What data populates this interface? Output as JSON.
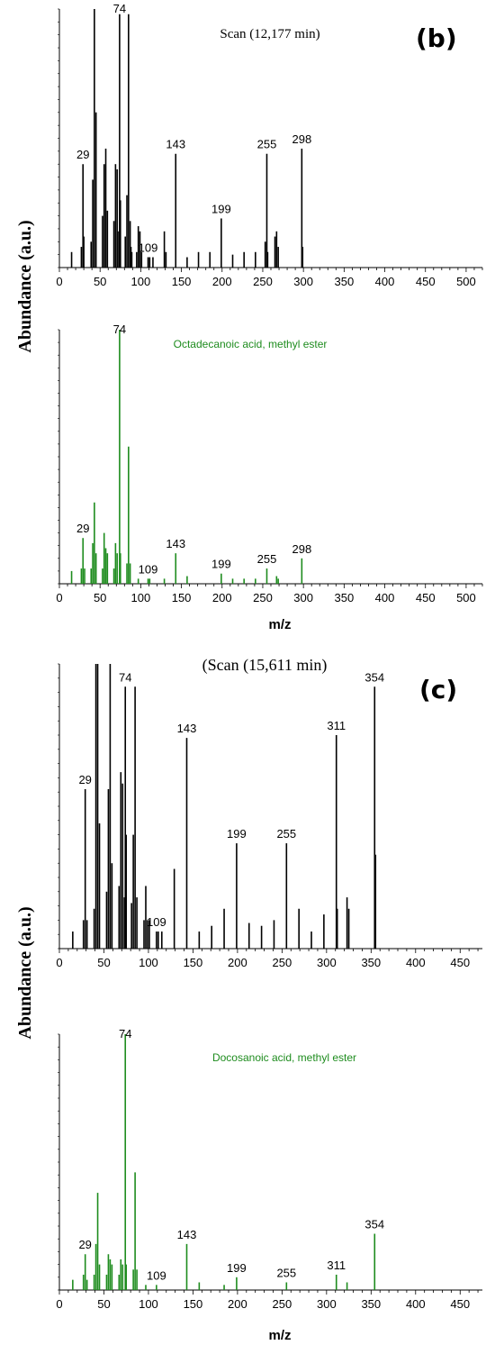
{
  "colors": {
    "measured": "#000000",
    "library": "#1e8c1e"
  },
  "axis_labels": {
    "abundance_top": "Abundance (a.u.)",
    "mz_top": "m/z",
    "abundance_bottom": "Abundance (a.u.)",
    "mz_bottom": "m/z"
  },
  "chart_data": [
    {
      "type": "bar",
      "panel": "b",
      "title": "Scan (12,177 min)",
      "color": "#000000",
      "xlim": [
        0,
        520
      ],
      "xticks": [
        "0",
        "50",
        "100",
        "150",
        "200",
        "250",
        "300",
        "350",
        "400",
        "450",
        "500"
      ],
      "x": [
        15,
        27,
        29,
        30,
        39,
        41,
        43,
        45,
        53,
        55,
        57,
        59,
        67,
        69,
        71,
        73,
        74,
        75,
        81,
        83,
        85,
        87,
        88,
        89,
        95,
        97,
        99,
        101,
        109,
        111,
        115,
        129,
        131,
        143,
        157,
        171,
        185,
        199,
        213,
        227,
        241,
        253,
        255,
        256,
        265,
        267,
        269,
        298,
        299
      ],
      "values": [
        6,
        8,
        40,
        12,
        10,
        34,
        100,
        60,
        20,
        40,
        46,
        22,
        18,
        40,
        38,
        14,
        98,
        26,
        12,
        28,
        98,
        18,
        8,
        6,
        6,
        16,
        14,
        6,
        4,
        4,
        4,
        14,
        6,
        44,
        4,
        6,
        6,
        19,
        5,
        6,
        6,
        10,
        44,
        6,
        12,
        14,
        8,
        46,
        8
      ],
      "labels": [
        {
          "x": 29,
          "text": "29"
        },
        {
          "x": 74,
          "text": "74"
        },
        {
          "x": 109,
          "text": "109"
        },
        {
          "x": 143,
          "text": "143"
        },
        {
          "x": 199,
          "text": "199"
        },
        {
          "x": 255,
          "text": "255"
        },
        {
          "x": 298,
          "text": "298"
        }
      ]
    },
    {
      "type": "bar",
      "compound": "Octadecanoic acid, methyl ester",
      "color": "#1e8c1e",
      "xlim": [
        0,
        520
      ],
      "xticks": [
        "0",
        "50",
        "100",
        "150",
        "200",
        "250",
        "300",
        "350",
        "400",
        "450",
        "500"
      ],
      "x": [
        15,
        27,
        29,
        31,
        39,
        41,
        43,
        45,
        53,
        55,
        57,
        59,
        67,
        69,
        71,
        74,
        75,
        83,
        85,
        87,
        97,
        109,
        111,
        129,
        143,
        157,
        199,
        213,
        227,
        241,
        255,
        267,
        269,
        298
      ],
      "values": [
        5,
        6,
        18,
        6,
        6,
        16,
        32,
        12,
        6,
        20,
        14,
        12,
        6,
        16,
        12,
        100,
        12,
        8,
        54,
        8,
        2,
        2,
        2,
        2,
        12,
        3,
        4,
        2,
        2,
        2,
        6,
        3,
        2,
        10
      ],
      "labels": [
        {
          "x": 29,
          "text": "29"
        },
        {
          "x": 74,
          "text": "74"
        },
        {
          "x": 109,
          "text": "109"
        },
        {
          "x": 143,
          "text": "143"
        },
        {
          "x": 199,
          "text": "199"
        },
        {
          "x": 255,
          "text": "255"
        },
        {
          "x": 298,
          "text": "298"
        }
      ]
    },
    {
      "type": "bar",
      "panel": "c",
      "title": "(Scan (15,611 min)",
      "color": "#000000",
      "xlim": [
        0,
        475
      ],
      "xticks": [
        "0",
        "50",
        "100",
        "150",
        "200",
        "250",
        "300",
        "350",
        "400",
        "450"
      ],
      "x": [
        15,
        27,
        29,
        31,
        39,
        41,
        43,
        45,
        53,
        55,
        57,
        59,
        67,
        69,
        71,
        73,
        74,
        75,
        81,
        83,
        85,
        87,
        95,
        97,
        99,
        101,
        109,
        111,
        115,
        129,
        143,
        157,
        171,
        185,
        199,
        213,
        227,
        241,
        255,
        269,
        283,
        297,
        311,
        312,
        323,
        325,
        354,
        355
      ],
      "values": [
        6,
        10,
        56,
        10,
        14,
        100,
        100,
        44,
        20,
        56,
        100,
        30,
        22,
        62,
        58,
        18,
        92,
        40,
        16,
        40,
        92,
        18,
        10,
        22,
        10,
        10,
        6,
        6,
        6,
        28,
        74,
        6,
        8,
        14,
        37,
        9,
        8,
        10,
        37,
        14,
        6,
        12,
        75,
        14,
        18,
        14,
        92,
        33
      ],
      "labels": [
        {
          "x": 29,
          "text": "29"
        },
        {
          "x": 74,
          "text": "74"
        },
        {
          "x": 109,
          "text": "109"
        },
        {
          "x": 143,
          "text": "143"
        },
        {
          "x": 199,
          "text": "199"
        },
        {
          "x": 255,
          "text": "255"
        },
        {
          "x": 311,
          "text": "311"
        },
        {
          "x": 354,
          "text": "354"
        }
      ]
    },
    {
      "type": "bar",
      "compound": "Docosanoic acid, methyl ester",
      "color": "#1e8c1e",
      "xlim": [
        0,
        475
      ],
      "xticks": [
        "0",
        "50",
        "100",
        "150",
        "200",
        "250",
        "300",
        "350",
        "400",
        "450"
      ],
      "x": [
        15,
        27,
        29,
        31,
        39,
        41,
        43,
        45,
        53,
        55,
        57,
        59,
        67,
        69,
        71,
        74,
        75,
        83,
        85,
        87,
        97,
        109,
        143,
        157,
        185,
        199,
        255,
        311,
        323,
        354
      ],
      "values": [
        4,
        6,
        14,
        4,
        6,
        18,
        38,
        10,
        6,
        14,
        12,
        10,
        6,
        12,
        10,
        100,
        10,
        8,
        46,
        8,
        2,
        2,
        18,
        3,
        2,
        5,
        3,
        6,
        3,
        22
      ],
      "labels": [
        {
          "x": 29,
          "text": "29"
        },
        {
          "x": 74,
          "text": "74"
        },
        {
          "x": 109,
          "text": "109"
        },
        {
          "x": 143,
          "text": "143"
        },
        {
          "x": 199,
          "text": "199"
        },
        {
          "x": 255,
          "text": "255"
        },
        {
          "x": 311,
          "text": "311"
        },
        {
          "x": 354,
          "text": "354"
        }
      ]
    }
  ]
}
